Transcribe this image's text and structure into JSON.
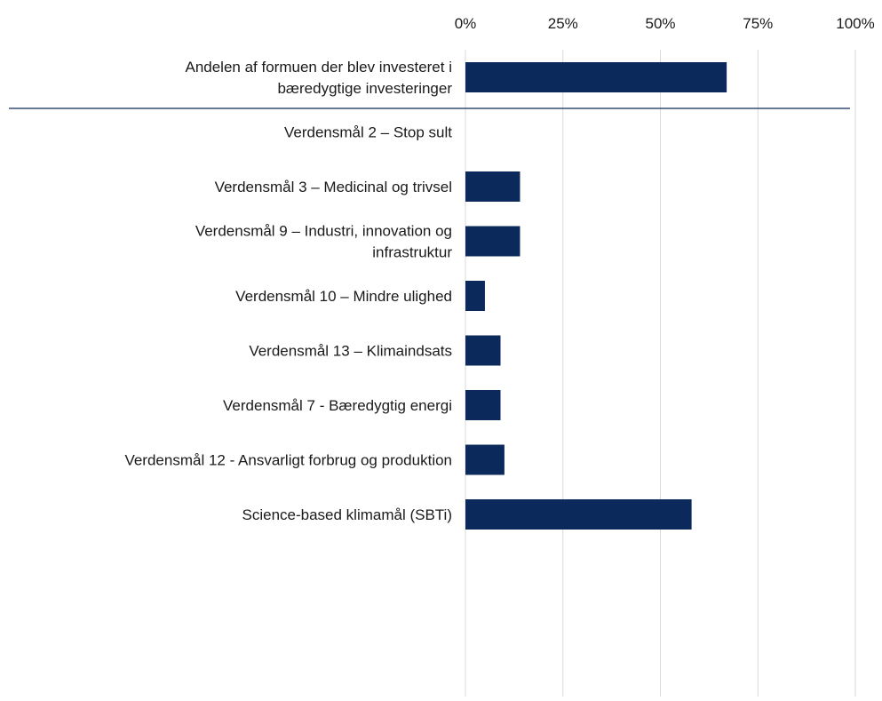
{
  "chart_data": {
    "type": "barh",
    "categories": [
      "Andelen af formuen der blev investeret i\nbæredygtige investeringer",
      "Verdensmål 2 – Stop sult",
      "Verdensmål 3 – Medicinal og trivsel",
      "Verdensmål 9 – Industri, innovation og\ninfrastruktur",
      "Verdensmål 10 – Mindre ulighed",
      "Verdensmål 13 – Klimaindsats",
      "Verdensmål 7 - Bæredygtig energi",
      "Verdensmål 12 - Ansvarligt forbrug og produktion",
      "Science-based klimamål (SBTi)"
    ],
    "values": [
      67,
      0,
      14,
      14,
      5,
      9,
      9,
      10,
      58
    ],
    "color": "#0b2a5b",
    "xlim": [
      0,
      100
    ],
    "xticks": [
      {
        "value": 0,
        "label": "0%"
      },
      {
        "value": 25,
        "label": "25%"
      },
      {
        "value": 50,
        "label": "50%"
      },
      {
        "value": 75,
        "label": "75%"
      },
      {
        "value": 100,
        "label": "100%"
      }
    ],
    "grid": true
  }
}
